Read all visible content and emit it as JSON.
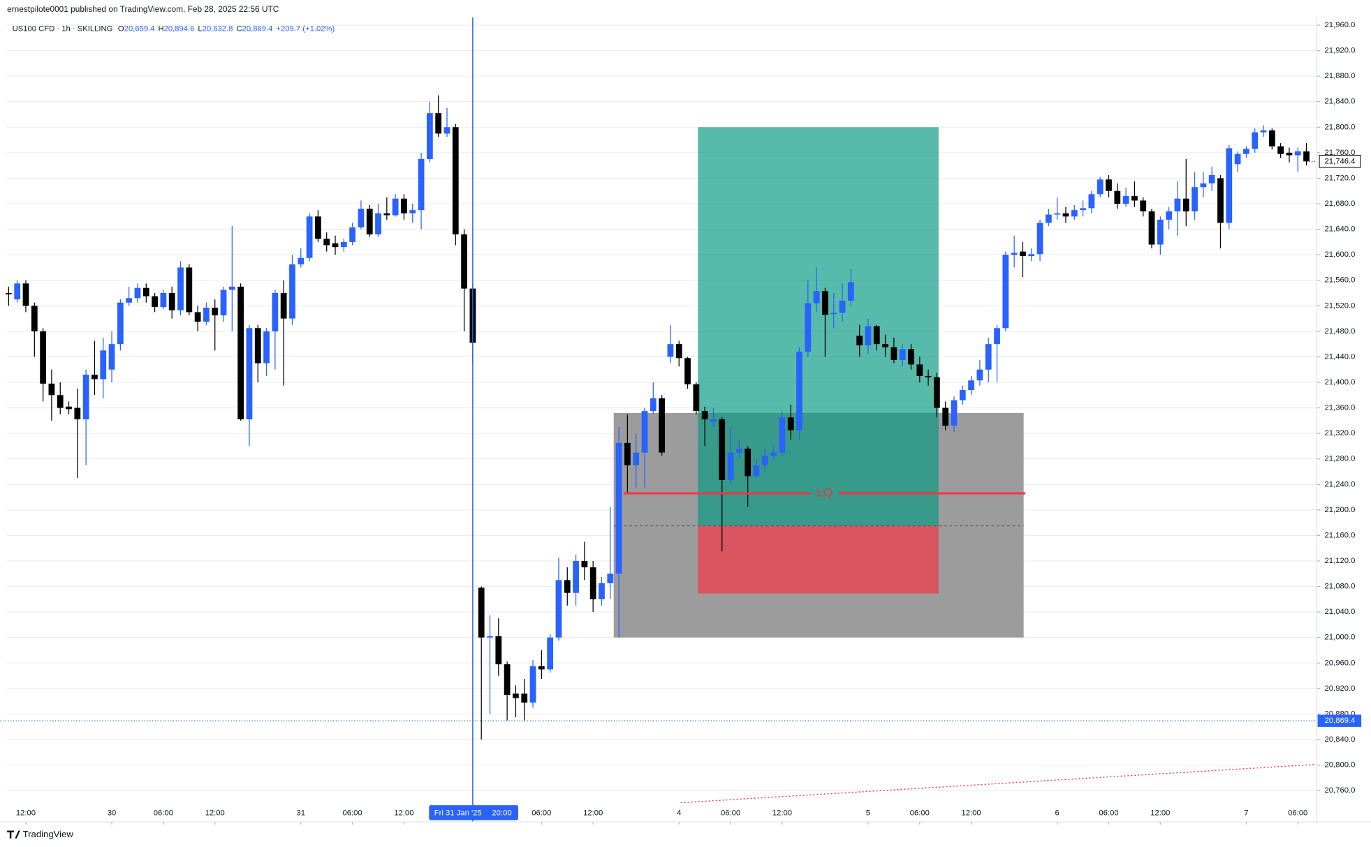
{
  "header": {
    "publisher": "ernestpilote0001 published on TradingView.com, Feb 28, 2025 22:56 UTC",
    "logo": "TradingView"
  },
  "chart_data": {
    "type": "candlestick",
    "title": "US100 CFD · 1h · SKILLING",
    "ohlc_legend": {
      "labels": [
        "O",
        "H",
        "L",
        "C"
      ],
      "values": [
        20659.4,
        20894.6,
        20632.8,
        20869.4
      ],
      "value_labels": [
        "20,659.4",
        "20,894.6",
        "20,632.8",
        "20,869.4"
      ],
      "change_label": "+209.7 (+1.02%)"
    },
    "open": [
      21540,
      21530,
      21555,
      21520,
      21480,
      21398,
      21380,
      21362,
      21360,
      21342,
      21412,
      21405,
      21420,
      21460,
      21525,
      21532,
      21548,
      21535,
      21518,
      21540,
      21513,
      21580,
      21510,
      21495,
      21517,
      21505,
      21545,
      21550,
      21342,
      21485,
      21430,
      21480,
      21540,
      21500,
      21585,
      21595,
      21660,
      21625,
      21618,
      21612,
      21620,
      21643,
      21672,
      21632,
      21665,
      21662,
      21688,
      21665,
      21670,
      21750,
      21822,
      21790,
      21800,
      21632,
      21547,
      21078,
      21000,
      21002,
      20958,
      20912,
      20912,
      20898,
      20955,
      20950,
      21000,
      21090,
      21070,
      21120,
      21110,
      21060,
      21085,
      21100,
      21305,
      21270,
      21290,
      21355,
      21375,
      21440,
      21460,
      21438,
      21397,
      21355,
      21338,
      21342,
      21247,
      21290,
      21296,
      21253,
      21270,
      21285,
      21290,
      21345,
      21325,
      21448,
      21524,
      21543,
      21507,
      21509,
      21528,
      21473,
      21458,
      21488,
      21460,
      21455,
      21435,
      21452,
      21428,
      21410,
      21408,
      21360,
      21332,
      21372,
      21388,
      21403,
      21420,
      21460,
      21485,
      21600,
      21605,
      21598,
      21601,
      21650,
      21663,
      21665,
      21660,
      21670,
      21673,
      21695,
      21718,
      21700,
      21680,
      21692,
      21685,
      21668,
      21616,
      21655,
      21668,
      21688,
      21668,
      21706,
      21712,
      21720,
      21650,
      21742,
      21758,
      21766,
      21792,
      21795,
      21770,
      21760,
      21756,
      21762
    ],
    "high": [
      21550,
      21560,
      21560,
      21525,
      21485,
      21420,
      21400,
      21370,
      21390,
      21420,
      21465,
      21470,
      21480,
      21530,
      21550,
      21555,
      21555,
      21540,
      21545,
      21550,
      21590,
      21585,
      21520,
      21525,
      21530,
      21550,
      21645,
      21555,
      21490,
      21490,
      21485,
      21545,
      21560,
      21600,
      21610,
      21665,
      21670,
      21635,
      21630,
      21625,
      21650,
      21685,
      21678,
      21680,
      21690,
      21695,
      21695,
      21680,
      21760,
      21840,
      21850,
      21830,
      21805,
      21640,
      21555,
      21080,
      21035,
      21030,
      20962,
      20925,
      20935,
      20965,
      20980,
      21005,
      21125,
      21110,
      21130,
      21150,
      21120,
      21095,
      21205,
      21330,
      21350,
      21320,
      21360,
      21400,
      21380,
      21490,
      21465,
      21440,
      21400,
      21362,
      21360,
      21345,
      21330,
      21310,
      21300,
      21280,
      21295,
      21300,
      21355,
      21365,
      21455,
      21560,
      21580,
      21548,
      21540,
      21555,
      21578,
      21490,
      21500,
      21490,
      21475,
      21470,
      21460,
      21460,
      21440,
      21420,
      21415,
      21370,
      21378,
      21395,
      21410,
      21435,
      21470,
      21490,
      21605,
      21630,
      21620,
      21610,
      21655,
      21672,
      21690,
      21675,
      21678,
      21685,
      21700,
      21722,
      21725,
      21712,
      21705,
      21715,
      21690,
      21672,
      21660,
      21675,
      21715,
      21750,
      21730,
      21730,
      21738,
      21725,
      21772,
      21762,
      21770,
      21798,
      21803,
      21798,
      21775,
      21768,
      21768,
      21775
    ],
    "low": [
      21520,
      21525,
      21510,
      21440,
      21370,
      21340,
      21350,
      21350,
      21250,
      21270,
      21380,
      21375,
      21400,
      21450,
      21520,
      21525,
      21525,
      21510,
      21515,
      21500,
      21505,
      21505,
      21480,
      21490,
      21450,
      21495,
      21480,
      21340,
      21300,
      21400,
      21410,
      21420,
      21395,
      21490,
      21580,
      21590,
      21620,
      21605,
      21600,
      21605,
      21615,
      21640,
      21628,
      21628,
      21655,
      21660,
      21655,
      21650,
      21640,
      21745,
      21785,
      21785,
      21615,
      21480,
      21430,
      20840,
      20880,
      20940,
      20870,
      20875,
      20870,
      20890,
      20935,
      20945,
      20995,
      21050,
      21050,
      21090,
      21040,
      21050,
      21060,
      21000,
      21225,
      21235,
      21235,
      21350,
      21285,
      21430,
      21425,
      21390,
      21350,
      21300,
      21330,
      21135,
      21240,
      21280,
      21205,
      21250,
      21260,
      21280,
      21285,
      21310,
      21310,
      21440,
      21510,
      21440,
      21485,
      21495,
      21520,
      21440,
      21445,
      21450,
      21440,
      21430,
      21425,
      21420,
      21400,
      21395,
      21345,
      21325,
      21322,
      21365,
      21380,
      21395,
      21400,
      21400,
      21480,
      21580,
      21565,
      21590,
      21590,
      21645,
      21655,
      21650,
      21655,
      21660,
      21665,
      21690,
      21690,
      21672,
      21675,
      21675,
      21660,
      21610,
      21600,
      21640,
      21630,
      21645,
      21655,
      21690,
      21700,
      21610,
      21640,
      21730,
      21752,
      21760,
      21785,
      21765,
      21752,
      21745,
      21730,
      21740
    ],
    "close": [
      21538,
      21555,
      21520,
      21480,
      21398,
      21380,
      21360,
      21358,
      21342,
      21412,
      21405,
      21450,
      21460,
      21525,
      21532,
      21548,
      21535,
      21518,
      21540,
      21513,
      21580,
      21510,
      21495,
      21517,
      21505,
      21545,
      21550,
      21342,
      21485,
      21430,
      21480,
      21540,
      21500,
      21585,
      21595,
      21660,
      21625,
      21615,
      21612,
      21620,
      21643,
      21672,
      21632,
      21665,
      21662,
      21688,
      21665,
      21670,
      21750,
      21822,
      21790,
      21800,
      21632,
      21547,
      21462,
      21000,
      21002,
      20958,
      20910,
      20905,
      20898,
      20955,
      20950,
      21000,
      21090,
      21070,
      21120,
      21110,
      21060,
      21085,
      21100,
      21305,
      21270,
      21290,
      21355,
      21375,
      21290,
      21460,
      21438,
      21397,
      21355,
      21342,
      21342,
      21247,
      21290,
      21296,
      21253,
      21270,
      21285,
      21290,
      21345,
      21325,
      21448,
      21524,
      21543,
      21506,
      21509,
      21528,
      21557,
      21458,
      21488,
      21460,
      21455,
      21435,
      21452,
      21428,
      21410,
      21408,
      21360,
      21332,
      21372,
      21388,
      21403,
      21420,
      21460,
      21485,
      21600,
      21603,
      21598,
      21601,
      21650,
      21663,
      21665,
      21660,
      21670,
      21673,
      21695,
      21718,
      21700,
      21680,
      21692,
      21685,
      21668,
      21616,
      21655,
      21668,
      21688,
      21668,
      21706,
      21712,
      21725,
      21650,
      21767,
      21758,
      21766,
      21792,
      21795,
      21770,
      21758,
      21756,
      21762,
      21746.4
    ],
    "up_color": "#2962ff",
    "down_color": "#000000",
    "xlim": [
      -1,
      152.2
    ],
    "xticks": [
      {
        "value": 2,
        "label": "12:00"
      },
      {
        "value": 12,
        "label": "30"
      },
      {
        "value": 18,
        "label": "06:00"
      },
      {
        "value": 24,
        "label": "12:00"
      },
      {
        "value": 34,
        "label": "31"
      },
      {
        "value": 40,
        "label": "06:00"
      },
      {
        "value": 46,
        "label": "12:00"
      },
      {
        "value": 62,
        "label": "06:00"
      },
      {
        "value": 68,
        "label": "12:00"
      },
      {
        "value": 78,
        "label": "4"
      },
      {
        "value": 84,
        "label": "06:00"
      },
      {
        "value": 90,
        "label": "12:00"
      },
      {
        "value": 100,
        "label": "5"
      },
      {
        "value": 106,
        "label": "06:00"
      },
      {
        "value": 112,
        "label": "12:00"
      },
      {
        "value": 122,
        "label": "6"
      },
      {
        "value": 128,
        "label": "06:00"
      },
      {
        "value": 134,
        "label": "12:00"
      },
      {
        "value": 144,
        "label": "7"
      },
      {
        "value": 150,
        "label": "06:00"
      }
    ],
    "ylim": [
      20711,
      21972
    ],
    "yticks": [
      {
        "value": 21960,
        "label": "21,960.0"
      },
      {
        "value": 21920,
        "label": "21,920.0"
      },
      {
        "value": 21880,
        "label": "21,880.0"
      },
      {
        "value": 21840,
        "label": "21,840.0"
      },
      {
        "value": 21800,
        "label": "21,800.0"
      },
      {
        "value": 21760,
        "label": "21,760.0"
      },
      {
        "value": 21720,
        "label": "21,720.0"
      },
      {
        "value": 21680,
        "label": "21,680.0"
      },
      {
        "value": 21640,
        "label": "21,640.0"
      },
      {
        "value": 21600,
        "label": "21,600.0"
      },
      {
        "value": 21560,
        "label": "21,560.0"
      },
      {
        "value": 21520,
        "label": "21,520.0"
      },
      {
        "value": 21480,
        "label": "21,480.0"
      },
      {
        "value": 21440,
        "label": "21,440.0"
      },
      {
        "value": 21400,
        "label": "21,400.0"
      },
      {
        "value": 21360,
        "label": "21,360.0"
      },
      {
        "value": 21320,
        "label": "21,320.0"
      },
      {
        "value": 21280,
        "label": "21,280.0"
      },
      {
        "value": 21240,
        "label": "21,240.0"
      },
      {
        "value": 21200,
        "label": "21,200.0"
      },
      {
        "value": 21160,
        "label": "21,160.0"
      },
      {
        "value": 21120,
        "label": "21,120.0"
      },
      {
        "value": 21080,
        "label": "21,080.0"
      },
      {
        "value": 21040,
        "label": "21,040.0"
      },
      {
        "value": 21000,
        "label": "21,000.0"
      },
      {
        "value": 20960,
        "label": "20,960.0"
      },
      {
        "value": 20920,
        "label": "20,920.0"
      },
      {
        "value": 20880,
        "label": "20,880.0"
      },
      {
        "value": 20840,
        "label": "20,840.0"
      },
      {
        "value": 20800,
        "label": "20,800.0"
      },
      {
        "value": 20760,
        "label": "20,760.0"
      }
    ],
    "grid": true,
    "last_price": {
      "value": 21746.4,
      "label": "21,746.4"
    },
    "crosshair": {
      "x": 54,
      "x_label": "Fri 31 Jan '25",
      "x_time": "20:00",
      "y": 20869.4,
      "y_label": "20,869.4"
    },
    "drawings": {
      "zone": {
        "x": [
          70.4,
          118.1
        ],
        "y": [
          21000,
          21352
        ]
      },
      "position": {
        "x": [
          80.2,
          108.2
        ],
        "target": 21800,
        "entry": 21175,
        "stop": 21069
      },
      "lq": {
        "label": "LQ",
        "y": 21226,
        "x": [
          71.6,
          118.3
        ]
      },
      "trend": {
        "x": [
          78.2,
          152.1
        ],
        "y": [
          20741,
          20801
        ]
      }
    }
  }
}
